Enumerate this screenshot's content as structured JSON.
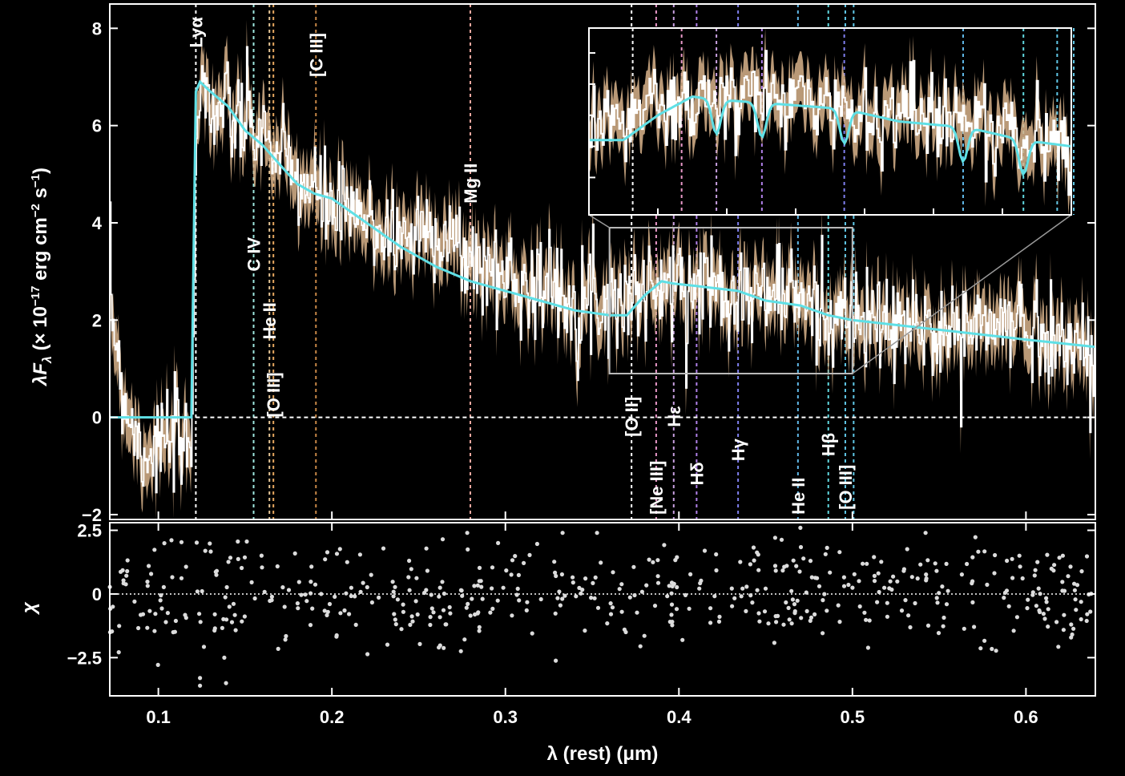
{
  "chart_data": [
    {
      "id": "spectrum",
      "type": "line",
      "xlabel": "λ (rest) (μm)",
      "ylabel": "λF_λ (× 10^−17 erg cm^−2 s^−1)",
      "ylabel_parts": {
        "lam": "λ",
        "F": "F",
        "sub": "λ",
        "a": " (× 10",
        "e1": "−17",
        "b": " erg cm",
        "e2": "−2",
        "c": " s",
        "e3": "−1",
        "d": ")"
      },
      "xlim": [
        0.072,
        0.64
      ],
      "ylim": [
        -2.1,
        8.5
      ],
      "xticks": [
        0.1,
        0.2,
        0.3,
        0.4,
        0.5,
        0.6
      ],
      "xtick_labels": [
        "0.1",
        "0.2",
        "0.3",
        "0.4",
        "0.5",
        "0.6"
      ],
      "yticks": [
        -2,
        0,
        2,
        4,
        6,
        8
      ],
      "ytick_labels": [
        "−2",
        "0",
        "2",
        "4",
        "6",
        "8"
      ],
      "zero_line": 0,
      "colors": {
        "data": "#ffffff",
        "error_band": "#d9b48c",
        "model": "#5fe0e6",
        "zero_line": "#ffffff"
      },
      "observed_flux": {
        "x": [
          0.072,
          0.08,
          0.09,
          0.1,
          0.11,
          0.119,
          0.1216,
          0.125,
          0.13,
          0.14,
          0.15,
          0.16,
          0.17,
          0.18,
          0.19,
          0.2,
          0.22,
          0.24,
          0.26,
          0.28,
          0.3,
          0.32,
          0.34,
          0.36,
          0.38,
          0.4,
          0.42,
          0.44,
          0.46,
          0.48,
          0.5,
          0.52,
          0.54,
          0.56,
          0.58,
          0.6,
          0.62,
          0.64
        ],
        "y": [
          2.5,
          0.4,
          -0.7,
          -0.6,
          -0.5,
          -0.7,
          6.2,
          6.9,
          6.4,
          6.2,
          6.0,
          5.8,
          5.3,
          4.9,
          4.6,
          4.3,
          4.0,
          3.7,
          3.9,
          3.2,
          2.9,
          2.7,
          2.5,
          2.4,
          2.6,
          2.7,
          2.8,
          2.5,
          2.6,
          2.2,
          2.0,
          1.9,
          1.8,
          1.8,
          1.9,
          1.9,
          1.6,
          1.2
        ],
        "error": 0.55
      },
      "model": {
        "x": [
          0.072,
          0.119,
          0.1216,
          0.124,
          0.13,
          0.14,
          0.15,
          0.16,
          0.17,
          0.18,
          0.19,
          0.2,
          0.22,
          0.24,
          0.26,
          0.28,
          0.3,
          0.32,
          0.34,
          0.36,
          0.37,
          0.38,
          0.39,
          0.397,
          0.41,
          0.434,
          0.45,
          0.47,
          0.486,
          0.5,
          0.55,
          0.6,
          0.64
        ],
        "y": [
          0.0,
          0.0,
          6.7,
          6.9,
          6.7,
          6.4,
          5.9,
          5.6,
          5.2,
          4.8,
          4.6,
          4.5,
          4.0,
          3.5,
          3.1,
          2.8,
          2.6,
          2.4,
          2.2,
          2.1,
          2.1,
          2.5,
          2.8,
          2.75,
          2.7,
          2.6,
          2.4,
          2.3,
          2.1,
          2.0,
          1.8,
          1.6,
          1.45
        ]
      },
      "emission_lines": [
        {
          "label": "Lyα",
          "x": 0.1216,
          "color": "#ffffff",
          "position": "top",
          "y": 7.6
        },
        {
          "label": "C IV",
          "x": 0.1549,
          "color": "#9fe8e0",
          "position": "upper",
          "y": 3.0
        },
        {
          "label": "He II",
          "x": 0.164,
          "color": "#e8c898",
          "position": "upper",
          "y": 1.6
        },
        {
          "label": "[O III]",
          "x": 0.1663,
          "color": "#e8a860",
          "position": "upper",
          "y": 0.0
        },
        {
          "label": "[C III]",
          "x": 0.1908,
          "color": "#c88848",
          "position": "top",
          "y": 7.0
        },
        {
          "label": "Mg II",
          "x": 0.2798,
          "color": "#f0a8a0",
          "position": "upper",
          "y": 4.4
        },
        {
          "label": "[O II]",
          "x": 0.3727,
          "color": "#ffffff",
          "position": "lower",
          "y": -0.4
        },
        {
          "label": "[Ne III]",
          "x": 0.3869,
          "color": "#e898c8",
          "position": "lower",
          "y": -2.0
        },
        {
          "label": "Hε",
          "x": 0.397,
          "color": "#c8a0e0",
          "position": "lower",
          "y": -0.2
        },
        {
          "label": "Hδ",
          "x": 0.4102,
          "color": "#b080e8",
          "position": "lower",
          "y": -1.4
        },
        {
          "label": "Hγ",
          "x": 0.4341,
          "color": "#8080f0",
          "position": "lower",
          "y": -0.9
        },
        {
          "label": "He II",
          "x": 0.4686,
          "color": "#60b8e8",
          "position": "lower",
          "y": -2.0
        },
        {
          "label": "Hβ",
          "x": 0.4861,
          "color": "#60d8e0",
          "position": "lower",
          "y": -0.8
        },
        {
          "label": "[O III]",
          "x": 0.4959,
          "color": "#60c8e8",
          "position": "lower",
          "y": -1.9
        },
        {
          "label": "",
          "x": 0.5007,
          "color": "#60c8e8",
          "position": "none",
          "y": 0
        }
      ],
      "zoom_region": {
        "x": [
          0.36,
          0.5
        ],
        "y": [
          0.9,
          3.9
        ]
      }
    },
    {
      "id": "inset",
      "type": "line",
      "note_source": "zoom of the region outlined in the main panel",
      "xlim": [
        0.36,
        0.5
      ],
      "ylim": [
        0.9,
        3.9
      ],
      "line_positions": [
        0.3727,
        0.3869,
        0.397,
        0.4102,
        0.4341,
        0.4686,
        0.4861,
        0.4959,
        0.5007
      ],
      "line_colors": [
        "#ffffff",
        "#e898c8",
        "#c8a0e0",
        "#b080e8",
        "#8080f0",
        "#60b8e8",
        "#60d8e0",
        "#60c8e8",
        "#60c8e8"
      ]
    },
    {
      "id": "residuals",
      "type": "scatter",
      "ylabel": "χ",
      "xlim": [
        0.072,
        0.64
      ],
      "ylim": [
        -4.0,
        2.8
      ],
      "yticks": [
        -2.5,
        0,
        2.5
      ],
      "ytick_labels": [
        "−2.5",
        "0",
        "2.5"
      ],
      "points_count": 520,
      "spread": 1.0,
      "outliers": [
        {
          "x": 0.124,
          "y": -3.6
        },
        {
          "x": 0.124,
          "y": -3.3
        },
        {
          "x": 0.139,
          "y": -3.5
        },
        {
          "x": 0.138,
          "y": -2.5
        },
        {
          "x": 0.47,
          "y": 2.6
        }
      ],
      "colors": {
        "points": "#dcdcdc",
        "zero_line": "#ffffff"
      }
    }
  ]
}
